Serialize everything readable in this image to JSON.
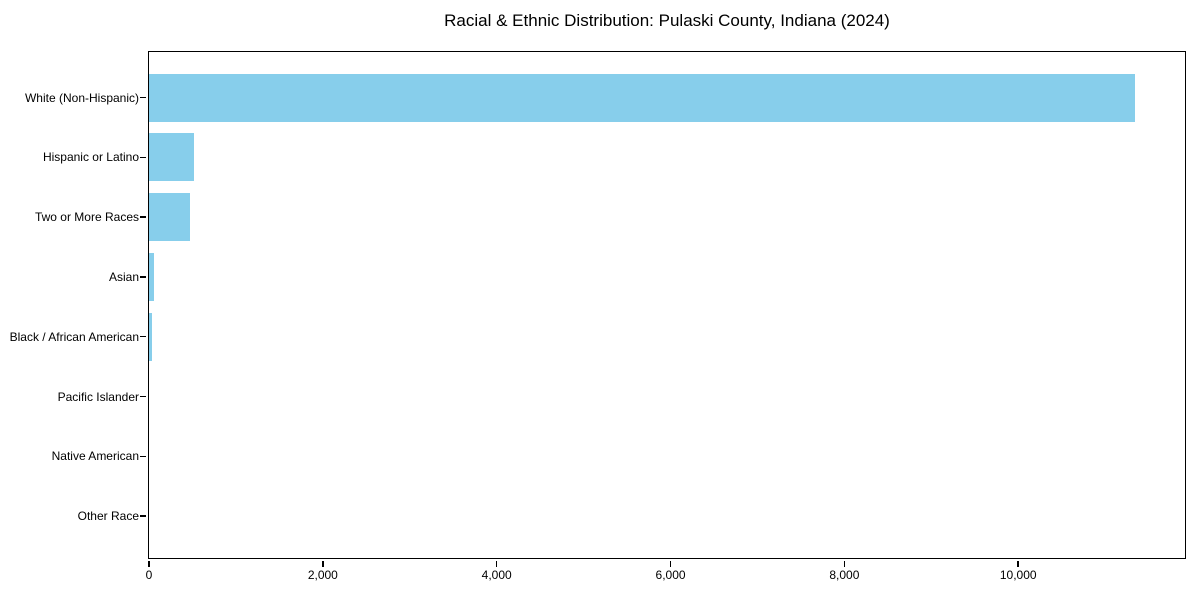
{
  "page": {
    "background_color": "#ffffff",
    "text_color": "#000000"
  },
  "chart_data": {
    "type": "bar",
    "orientation": "horizontal",
    "title": "Racial & Ethnic Distribution: Pulaski County, Indiana (2024)",
    "xlabel": "",
    "ylabel": "",
    "categories": [
      "White (Non-Hispanic)",
      "Hispanic or Latino",
      "Two or More Races",
      "Asian",
      "Black / African American",
      "Pacific Islander",
      "Native American",
      "Other Race"
    ],
    "values": [
      11340,
      515,
      470,
      55,
      35,
      0,
      0,
      0
    ],
    "bar_color": "#87CEEB",
    "axis_color": "#000000",
    "xlim": [
      0,
      11907
    ],
    "xticks": [
      {
        "value": 0,
        "label": "0"
      },
      {
        "value": 2000,
        "label": "2,000"
      },
      {
        "value": 4000,
        "label": "4,000"
      },
      {
        "value": 6000,
        "label": "6,000"
      },
      {
        "value": 8000,
        "label": "8,000"
      },
      {
        "value": 10000,
        "label": "10,000"
      }
    ],
    "grid": false,
    "legend": null
  }
}
